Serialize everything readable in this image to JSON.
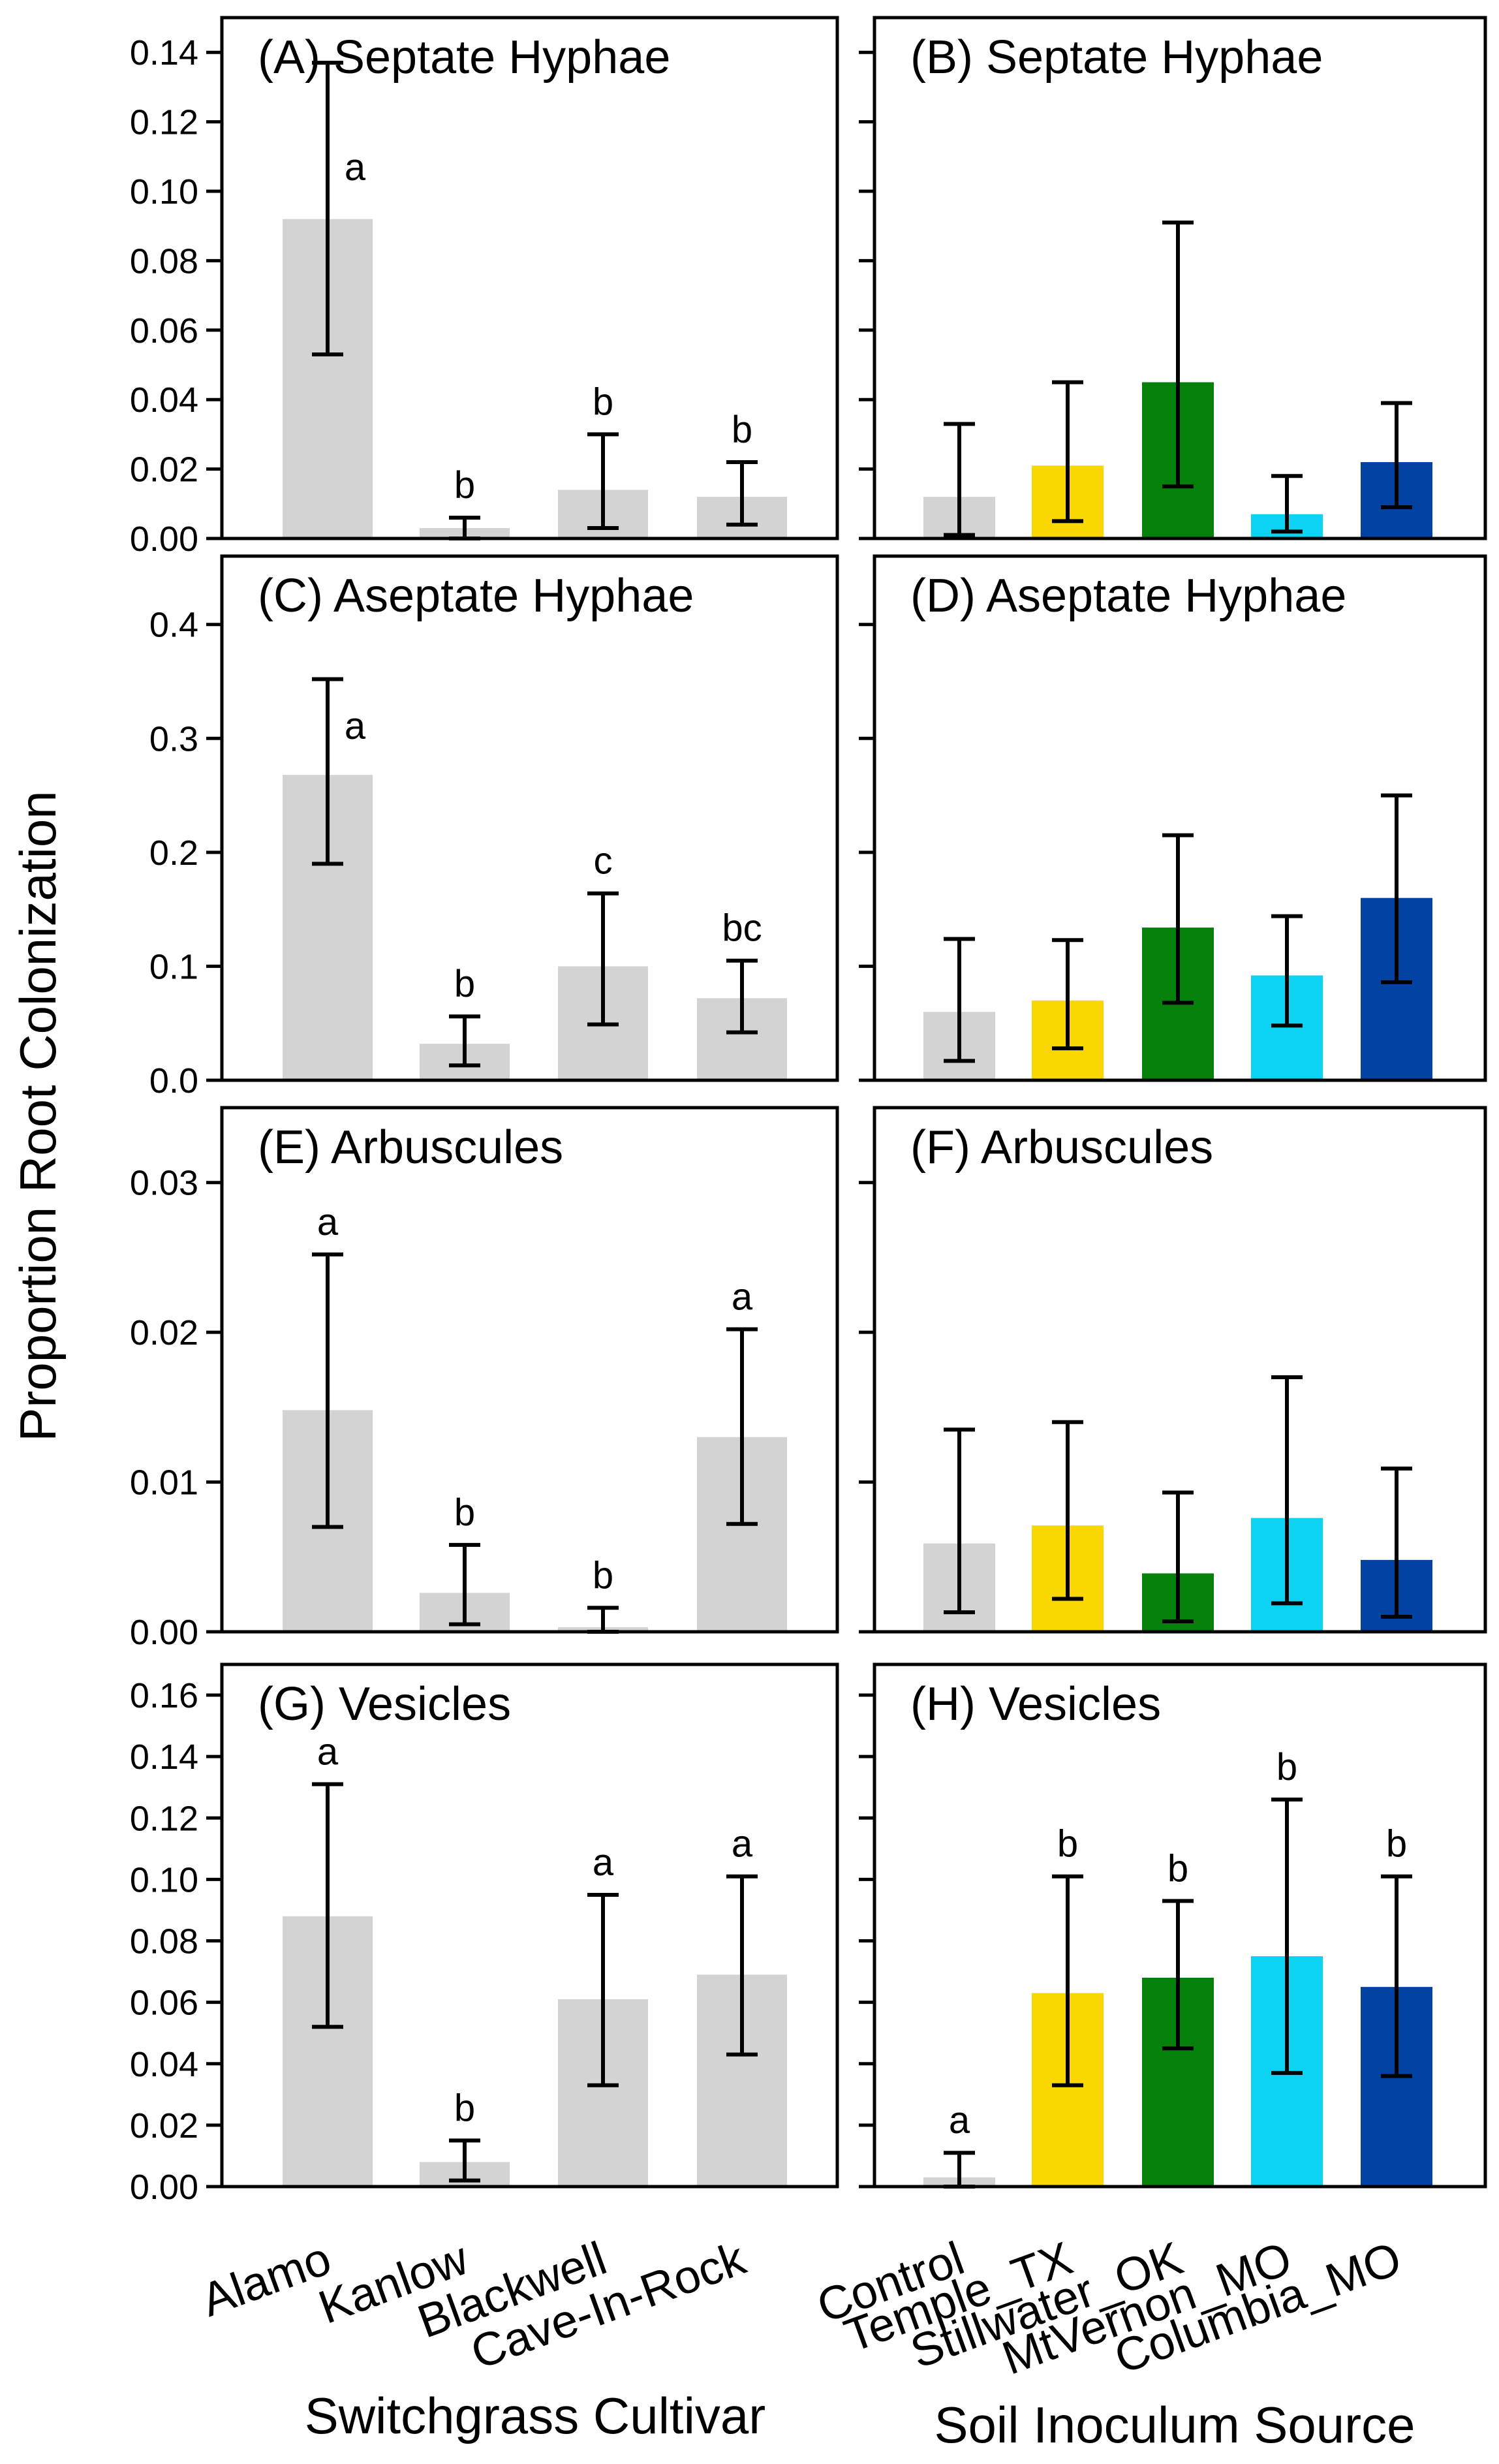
{
  "figure": {
    "ylabel": "Proportion Root Colonization",
    "xlabel_left": "Switchgrass Cultivar",
    "xlabel_right": "Soil Inoculum Source",
    "cultivars": [
      "Alamo",
      "Kanlow",
      "Blackwell",
      "Cave-In-Rock"
    ],
    "sources": [
      "Control",
      "Temple_TX",
      "Stillwater_OK",
      "MtVernon_MO",
      "Columbia_MO"
    ]
  },
  "colors": {
    "gray": "#d3d3d3",
    "Control": "#d3d3d3",
    "Temple_TX": "#fad700",
    "Stillwater_OK": "#05800a",
    "MtVernon_MO": "#0dd3f3",
    "Columbia_MO": "#0242a3"
  },
  "chart_data": [
    {
      "type": "bar",
      "title": "(A) Septate Hyphae",
      "xlabel": "Switchgrass Cultivar",
      "ylabel": "Proportion Root Colonization",
      "categories": [
        "Alamo",
        "Kanlow",
        "Blackwell",
        "Cave-In-Rock"
      ],
      "ylim": [
        0,
        0.15
      ],
      "yticks": [
        "0.00",
        "0.02",
        "0.04",
        "0.06",
        "0.08",
        "0.10",
        "0.12",
        "0.14"
      ],
      "values": [
        0.092,
        0.003,
        0.014,
        0.012
      ],
      "err_low": [
        0.053,
        0.0,
        0.003,
        0.004
      ],
      "err_high": [
        0.137,
        0.006,
        0.03,
        0.022
      ],
      "letters": [
        "a",
        "b",
        "b",
        "b"
      ]
    },
    {
      "type": "bar",
      "title": "(B) Septate Hyphae",
      "xlabel": "Soil Inoculum Source",
      "categories": [
        "Control",
        "Temple_TX",
        "Stillwater_OK",
        "MtVernon_MO",
        "Columbia_MO"
      ],
      "ylim": [
        0,
        0.15
      ],
      "yticks": [],
      "values": [
        0.012,
        0.021,
        0.045,
        0.007,
        0.022
      ],
      "err_low": [
        0.001,
        0.005,
        0.015,
        0.002,
        0.009
      ],
      "err_high": [
        0.033,
        0.045,
        0.091,
        0.018,
        0.039
      ],
      "letters": []
    },
    {
      "type": "bar",
      "title": "(C) Aseptate Hyphae",
      "xlabel": "Switchgrass Cultivar",
      "ylabel": "Proportion Root Colonization",
      "categories": [
        "Alamo",
        "Kanlow",
        "Blackwell",
        "Cave-In-Rock"
      ],
      "ylim": [
        0,
        0.46
      ],
      "yticks": [
        "0.0",
        "0.1",
        "0.2",
        "0.3",
        "0.4"
      ],
      "values": [
        0.268,
        0.032,
        0.1,
        0.072
      ],
      "err_low": [
        0.19,
        0.013,
        0.049,
        0.042
      ],
      "err_high": [
        0.352,
        0.056,
        0.164,
        0.105
      ],
      "letters": [
        "a",
        "b",
        "c",
        "bc"
      ]
    },
    {
      "type": "bar",
      "title": "(D) Aseptate Hyphae",
      "xlabel": "Soil Inoculum Source",
      "categories": [
        "Control",
        "Temple_TX",
        "Stillwater_OK",
        "MtVernon_MO",
        "Columbia_MO"
      ],
      "ylim": [
        0,
        0.46
      ],
      "yticks": [],
      "values": [
        0.06,
        0.07,
        0.134,
        0.092,
        0.16
      ],
      "err_low": [
        0.017,
        0.028,
        0.068,
        0.048,
        0.086
      ],
      "err_high": [
        0.124,
        0.123,
        0.215,
        0.144,
        0.25
      ],
      "letters": []
    },
    {
      "type": "bar",
      "title": "(E) Arbuscules",
      "xlabel": "Switchgrass Cultivar",
      "ylabel": "Proportion Root Colonization",
      "categories": [
        "Alamo",
        "Kanlow",
        "Blackwell",
        "Cave-In-Rock"
      ],
      "ylim": [
        0,
        0.035
      ],
      "yticks": [
        "0.00",
        "0.01",
        "0.02",
        "0.03"
      ],
      "values": [
        0.0148,
        0.0026,
        0.0003,
        0.013
      ],
      "err_low": [
        0.007,
        0.0005,
        0.0,
        0.0072
      ],
      "err_high": [
        0.0252,
        0.0058,
        0.0016,
        0.0202
      ],
      "letters": [
        "a",
        "b",
        "b",
        "a"
      ]
    },
    {
      "type": "bar",
      "title": "(F) Arbuscules",
      "xlabel": "Soil Inoculum Source",
      "categories": [
        "Control",
        "Temple_TX",
        "Stillwater_OK",
        "MtVernon_MO",
        "Columbia_MO"
      ],
      "ylim": [
        0,
        0.035
      ],
      "yticks": [],
      "values": [
        0.0059,
        0.0071,
        0.0039,
        0.0076,
        0.0048
      ],
      "err_low": [
        0.0013,
        0.0022,
        0.0007,
        0.0019,
        0.001
      ],
      "err_high": [
        0.0135,
        0.014,
        0.0093,
        0.017,
        0.0109
      ],
      "letters": []
    },
    {
      "type": "bar",
      "title": "(G) Vesicles",
      "xlabel": "Switchgrass Cultivar",
      "ylabel": "Proportion Root Colonization",
      "categories": [
        "Alamo",
        "Kanlow",
        "Blackwell",
        "Cave-In-Rock"
      ],
      "ylim": [
        0,
        0.17
      ],
      "yticks": [
        "0.00",
        "0.02",
        "0.04",
        "0.06",
        "0.08",
        "0.10",
        "0.12",
        "0.14",
        "0.16"
      ],
      "values": [
        0.088,
        0.008,
        0.061,
        0.069
      ],
      "err_low": [
        0.052,
        0.002,
        0.033,
        0.043
      ],
      "err_high": [
        0.131,
        0.015,
        0.095,
        0.101
      ],
      "letters": [
        "a",
        "b",
        "a",
        "a"
      ]
    },
    {
      "type": "bar",
      "title": "(H) Vesicles",
      "xlabel": "Soil Inoculum Source",
      "categories": [
        "Control",
        "Temple_TX",
        "Stillwater_OK",
        "MtVernon_MO",
        "Columbia_MO"
      ],
      "ylim": [
        0,
        0.17
      ],
      "yticks": [],
      "values": [
        0.003,
        0.063,
        0.068,
        0.075,
        0.065
      ],
      "err_low": [
        0.0,
        0.033,
        0.045,
        0.037,
        0.036
      ],
      "err_high": [
        0.011,
        0.101,
        0.093,
        0.126,
        0.101
      ],
      "letters": [
        "a",
        "b",
        "b",
        "b",
        "b"
      ]
    }
  ]
}
